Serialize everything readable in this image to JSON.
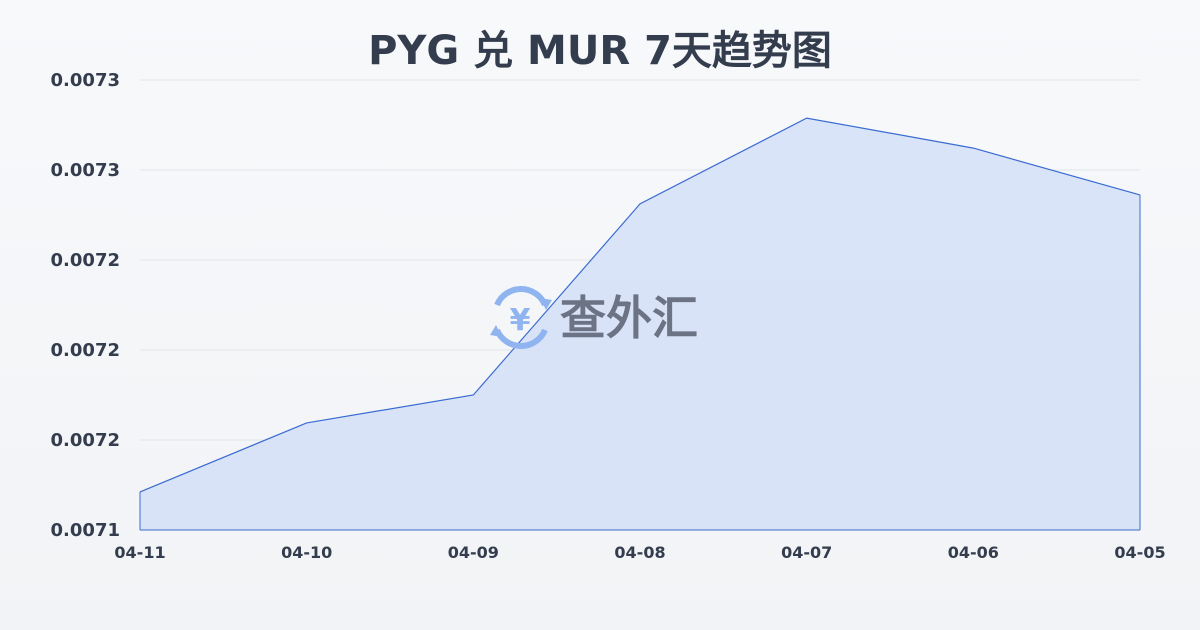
{
  "chart_data": {
    "type": "area",
    "title": "PYG 兑 MUR 7天趋势图",
    "categories": [
      "04-11",
      "04-10",
      "04-09",
      "04-08",
      "04-07",
      "04-06",
      "04-05"
    ],
    "series": [
      {
        "values": [
          0.0071527,
          0.0071757,
          0.007185,
          0.0072487,
          0.0072773,
          0.0072673,
          0.0072517
        ]
      }
    ],
    "ylim": [
      0.00714,
      0.00729
    ],
    "yticks": [
      0.00714,
      0.00717,
      0.0072,
      0.00723,
      0.00726,
      0.00729
    ],
    "ytick_labels": [
      "0.0071",
      "0.0072",
      "0.0072",
      "0.0072",
      "0.0073",
      "0.0073"
    ],
    "xlabel": "",
    "ylabel": "",
    "grid": true,
    "colors": {
      "line": "#3a6bd1",
      "fill": "#d6e1f7",
      "grid": "#e3e6ea",
      "text": "#333d4d"
    }
  },
  "watermark": {
    "text": "查外汇",
    "icon": "yen-exchange-icon"
  }
}
